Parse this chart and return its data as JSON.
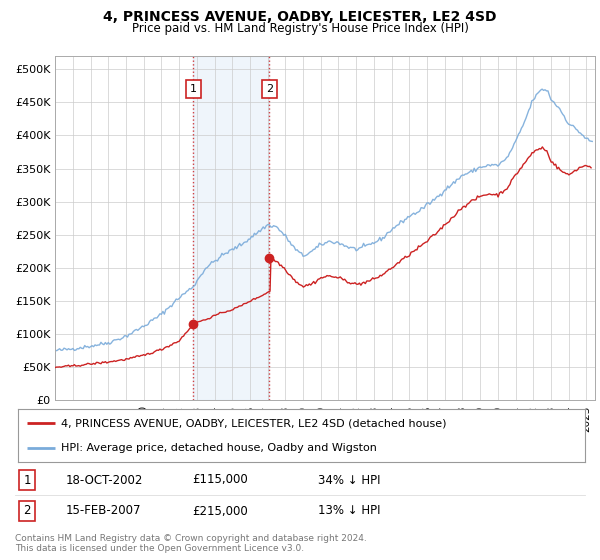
{
  "title": "4, PRINCESS AVENUE, OADBY, LEICESTER, LE2 4SD",
  "subtitle": "Price paid vs. HM Land Registry's House Price Index (HPI)",
  "ylabel_ticks": [
    "£0",
    "£50K",
    "£100K",
    "£150K",
    "£200K",
    "£250K",
    "£300K",
    "£350K",
    "£400K",
    "£450K",
    "£500K"
  ],
  "ytick_values": [
    0,
    50000,
    100000,
    150000,
    200000,
    250000,
    300000,
    350000,
    400000,
    450000,
    500000
  ],
  "ylim": [
    0,
    520000
  ],
  "xlim_start": 1995.0,
  "xlim_end": 2025.5,
  "hpi_color": "#7aabda",
  "price_color": "#cc2222",
  "sale1_x": 2002.8,
  "sale1_y": 115000,
  "sale1_label": "1",
  "sale2_x": 2007.1,
  "sale2_y": 215000,
  "sale2_label": "2",
  "shade_x1": 2002.8,
  "shade_x2": 2007.1,
  "legend_label1": "4, PRINCESS AVENUE, OADBY, LEICESTER, LE2 4SD (detached house)",
  "legend_label2": "HPI: Average price, detached house, Oadby and Wigston",
  "table_rows": [
    {
      "num": "1",
      "date": "18-OCT-2002",
      "price": "£115,000",
      "hpi": "34% ↓ HPI"
    },
    {
      "num": "2",
      "date": "15-FEB-2007",
      "price": "£215,000",
      "hpi": "13% ↓ HPI"
    }
  ],
  "footnote": "Contains HM Land Registry data © Crown copyright and database right 2024.\nThis data is licensed under the Open Government Licence v3.0.",
  "background_color": "#ffffff",
  "grid_color": "#cccccc",
  "hpi_base_points": [
    [
      1995.0,
      75000
    ],
    [
      1996.0,
      78000
    ],
    [
      1997.0,
      82000
    ],
    [
      1998.0,
      87000
    ],
    [
      1999.0,
      97000
    ],
    [
      2000.0,
      112000
    ],
    [
      2001.0,
      130000
    ],
    [
      2002.0,
      155000
    ],
    [
      2002.8,
      172000
    ],
    [
      2003.5,
      200000
    ],
    [
      2004.5,
      220000
    ],
    [
      2005.5,
      235000
    ],
    [
      2006.5,
      255000
    ],
    [
      2007.0,
      265000
    ],
    [
      2007.5,
      262000
    ],
    [
      2008.0,
      248000
    ],
    [
      2008.5,
      230000
    ],
    [
      2009.0,
      218000
    ],
    [
      2009.5,
      225000
    ],
    [
      2010.0,
      235000
    ],
    [
      2010.5,
      240000
    ],
    [
      2011.0,
      238000
    ],
    [
      2011.5,
      232000
    ],
    [
      2012.0,
      228000
    ],
    [
      2012.5,
      232000
    ],
    [
      2013.0,
      238000
    ],
    [
      2013.5,
      245000
    ],
    [
      2014.0,
      258000
    ],
    [
      2014.5,
      268000
    ],
    [
      2015.0,
      278000
    ],
    [
      2015.5,
      285000
    ],
    [
      2016.0,
      295000
    ],
    [
      2016.5,
      305000
    ],
    [
      2017.0,
      318000
    ],
    [
      2017.5,
      328000
    ],
    [
      2018.0,
      340000
    ],
    [
      2018.5,
      345000
    ],
    [
      2019.0,
      352000
    ],
    [
      2019.5,
      355000
    ],
    [
      2020.0,
      355000
    ],
    [
      2020.5,
      365000
    ],
    [
      2021.0,
      390000
    ],
    [
      2021.5,
      420000
    ],
    [
      2022.0,
      455000
    ],
    [
      2022.5,
      470000
    ],
    [
      2022.8,
      468000
    ],
    [
      2023.0,
      455000
    ],
    [
      2023.5,
      440000
    ],
    [
      2024.0,
      418000
    ],
    [
      2024.5,
      408000
    ],
    [
      2025.0,
      395000
    ],
    [
      2025.3,
      390000
    ]
  ],
  "red_base_points_seg1": [
    [
      1995.0,
      50000
    ],
    [
      1996.0,
      52000
    ],
    [
      1997.0,
      55000
    ],
    [
      1998.0,
      58000
    ],
    [
      1999.0,
      62000
    ],
    [
      2000.0,
      68000
    ],
    [
      2001.0,
      77000
    ],
    [
      2002.0,
      90000
    ],
    [
      2002.8,
      115000
    ]
  ],
  "red_base_points_seg2": [
    [
      2002.8,
      115000
    ],
    [
      2003.0,
      118000
    ],
    [
      2003.5,
      122000
    ],
    [
      2004.0,
      128000
    ],
    [
      2004.5,
      133000
    ],
    [
      2005.0,
      137000
    ],
    [
      2005.5,
      143000
    ],
    [
      2006.0,
      150000
    ],
    [
      2006.5,
      156000
    ],
    [
      2007.0,
      163000
    ],
    [
      2007.1,
      165000
    ]
  ],
  "red_base_points_seg3": [
    [
      2007.1,
      215000
    ],
    [
      2007.5,
      210000
    ],
    [
      2008.0,
      198000
    ],
    [
      2008.5,
      182000
    ],
    [
      2009.0,
      172000
    ],
    [
      2009.5,
      176000
    ],
    [
      2010.0,
      185000
    ],
    [
      2010.5,
      188000
    ],
    [
      2011.0,
      185000
    ],
    [
      2011.5,
      180000
    ],
    [
      2012.0,
      175000
    ],
    [
      2012.5,
      178000
    ],
    [
      2013.0,
      183000
    ],
    [
      2013.5,
      190000
    ],
    [
      2014.0,
      200000
    ],
    [
      2014.5,
      210000
    ],
    [
      2015.0,
      220000
    ],
    [
      2015.5,
      230000
    ],
    [
      2016.0,
      240000
    ],
    [
      2016.5,
      252000
    ],
    [
      2017.0,
      265000
    ],
    [
      2017.5,
      278000
    ],
    [
      2018.0,
      292000
    ],
    [
      2018.5,
      300000
    ],
    [
      2019.0,
      308000
    ],
    [
      2019.5,
      312000
    ],
    [
      2020.0,
      310000
    ],
    [
      2020.5,
      320000
    ],
    [
      2021.0,
      340000
    ],
    [
      2021.5,
      358000
    ],
    [
      2022.0,
      375000
    ],
    [
      2022.5,
      382000
    ],
    [
      2022.8,
      375000
    ],
    [
      2023.0,
      362000
    ],
    [
      2023.5,
      348000
    ],
    [
      2024.0,
      340000
    ],
    [
      2024.5,
      350000
    ],
    [
      2025.0,
      355000
    ],
    [
      2025.3,
      352000
    ]
  ]
}
